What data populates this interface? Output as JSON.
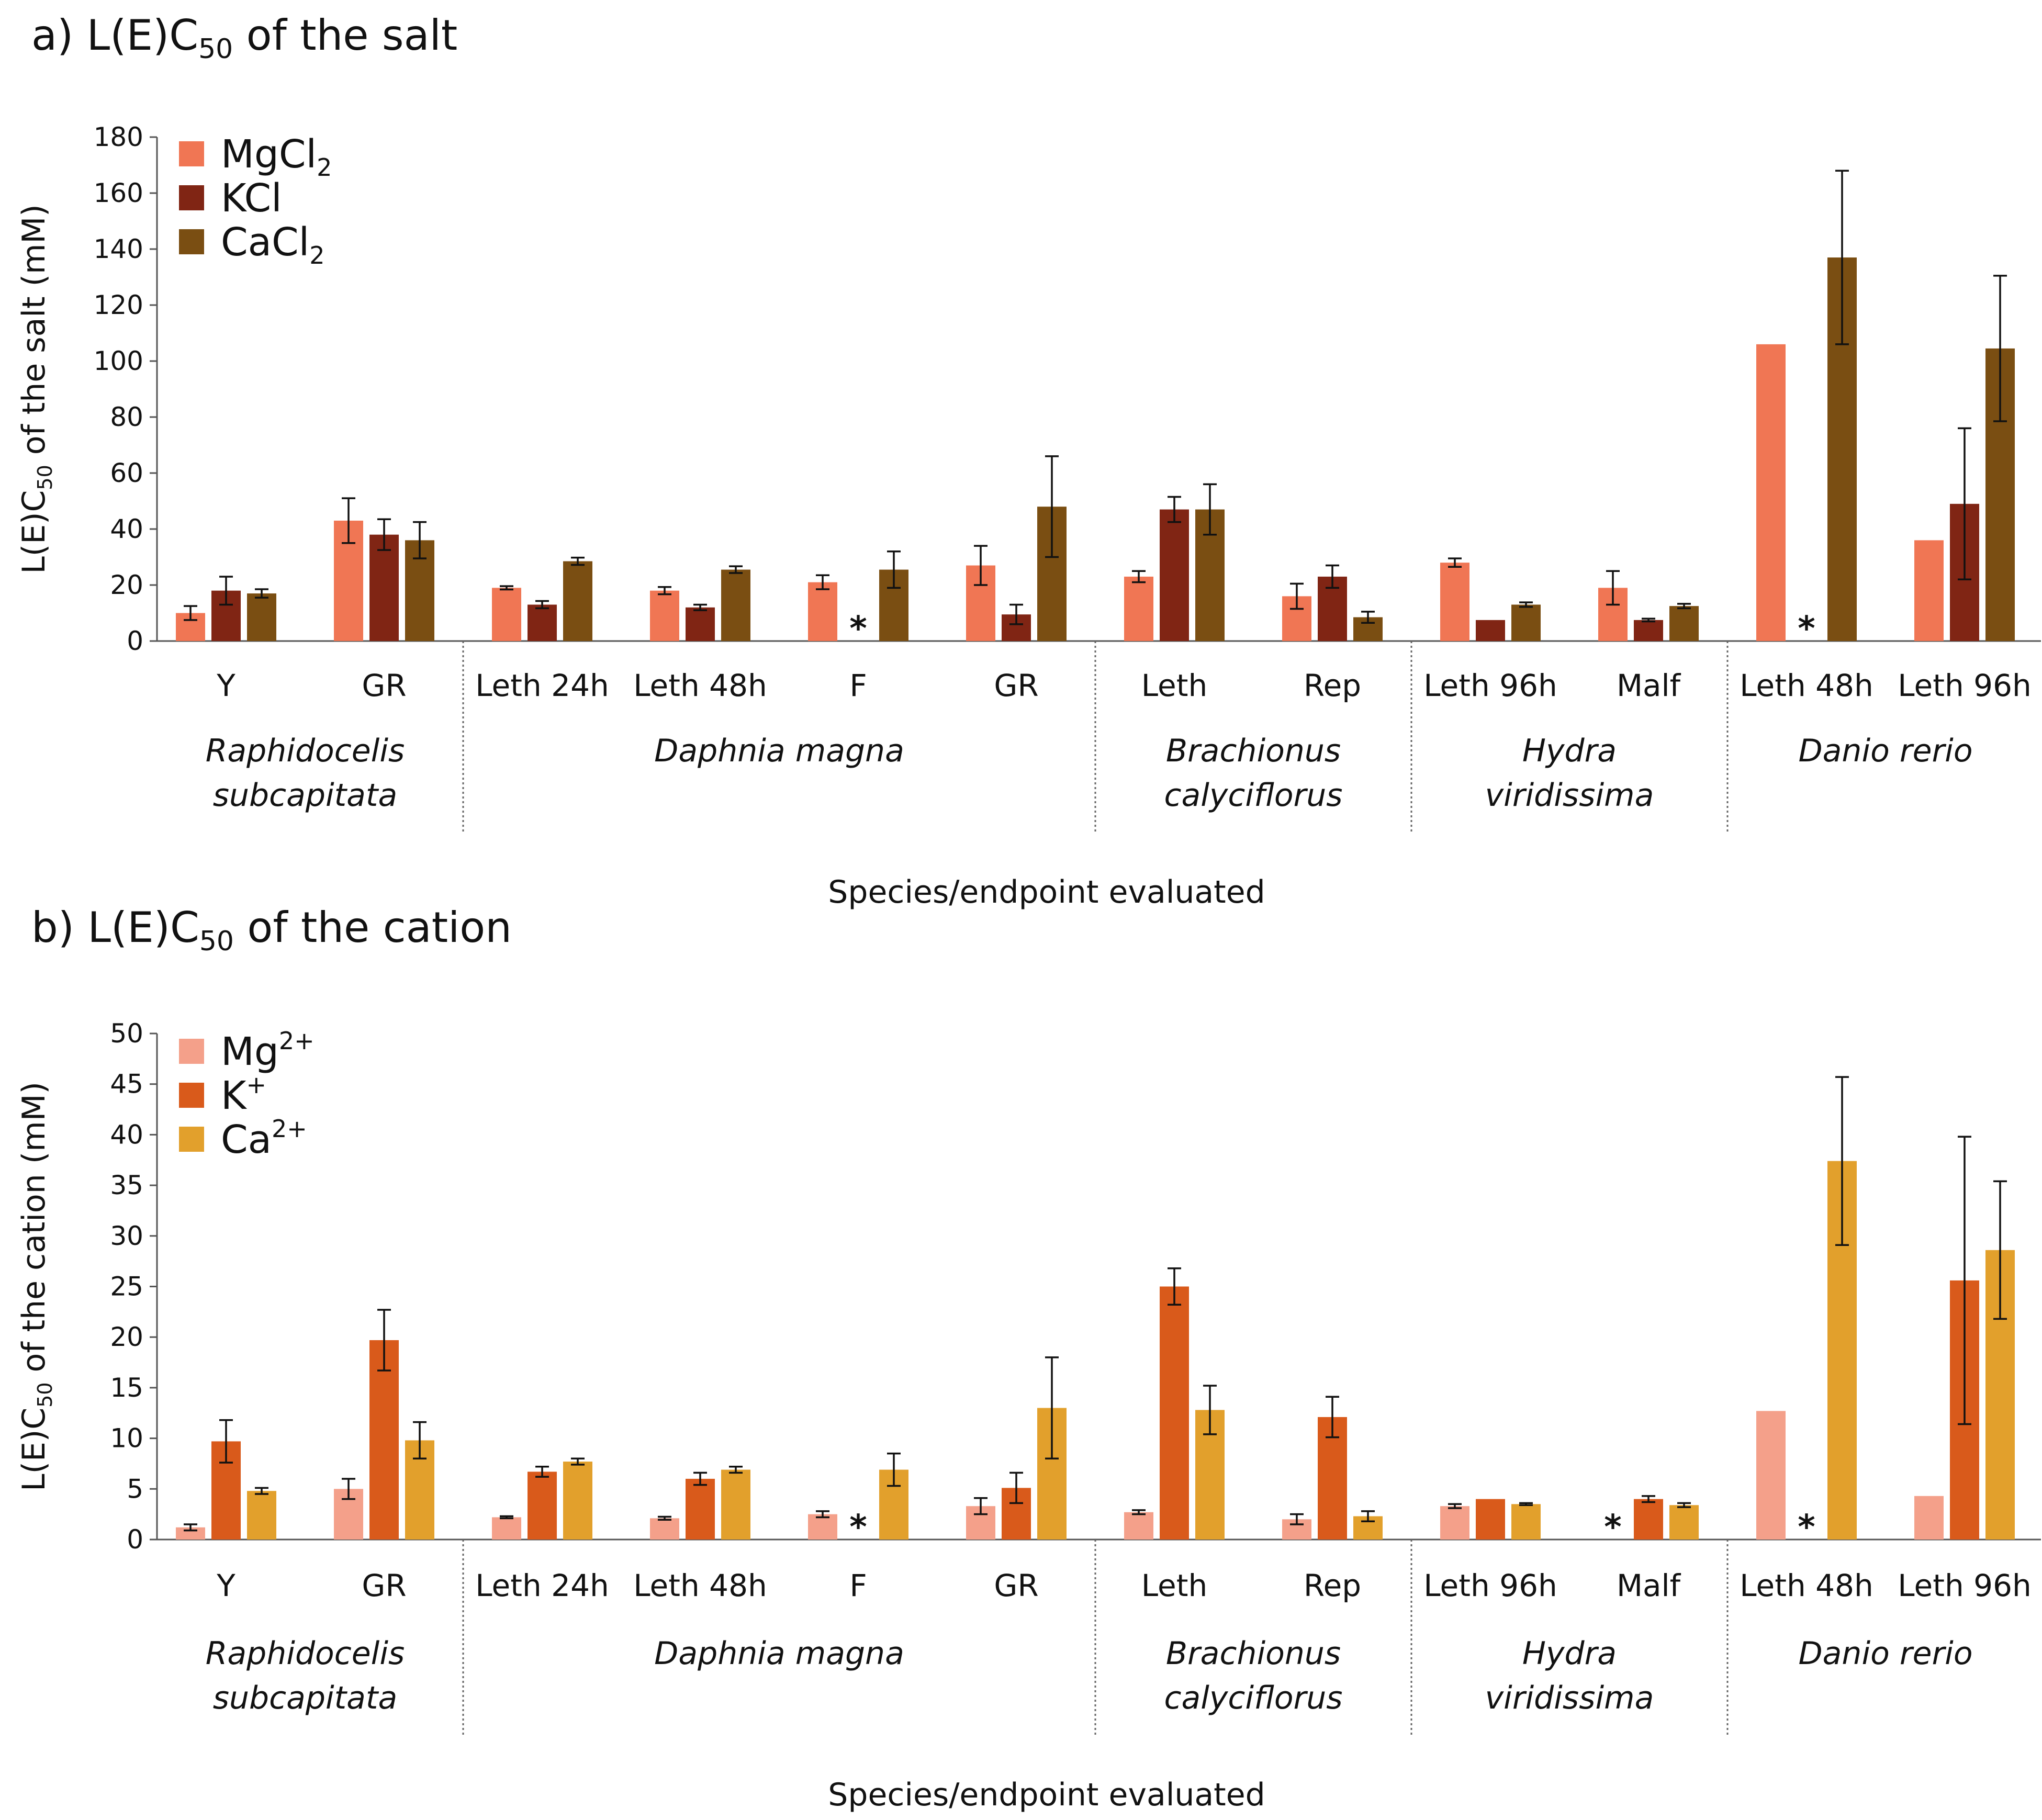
{
  "chart_data": [
    {
      "type": "bar",
      "panel": "a",
      "title": "a) L(E)C",
      "title_sub": "50",
      "title_tail": " of the salt",
      "ylabel": "L(E)C",
      "ylabel_sub": "50",
      "ylabel_tail": " of the salt (mM)",
      "xlabel": "Species/endpoint evaluated",
      "ylim": [
        0,
        180
      ],
      "yticks": [
        0,
        20,
        40,
        60,
        80,
        100,
        120,
        140,
        160,
        180
      ],
      "categories": [
        "Y",
        "GR",
        "Leth 24h",
        "Leth 48h",
        "F",
        "GR",
        "Leth",
        "Rep",
        "Leth 96h",
        "Malf",
        "Leth 48h",
        "Leth 96h"
      ],
      "groups": [
        {
          "lines": [
            "Raphidocelis",
            "subcapitata"
          ],
          "start": 0,
          "end": 1
        },
        {
          "lines": [
            "Daphnia magna"
          ],
          "start": 2,
          "end": 5
        },
        {
          "lines": [
            "Brachionus",
            "calyciflorus"
          ],
          "start": 6,
          "end": 7
        },
        {
          "lines": [
            "Hydra",
            "viridissima"
          ],
          "start": 8,
          "end": 9
        },
        {
          "lines": [
            "Danio rerio"
          ],
          "start": 10,
          "end": 11
        }
      ],
      "series": [
        {
          "name": "MgCl",
          "name_sub": "2",
          "color": "#F07654",
          "values": [
            10,
            43,
            19,
            18,
            21,
            27,
            23,
            16,
            28,
            19,
            106,
            36
          ],
          "errors": [
            2.5,
            8,
            0.6,
            1.3,
            2.5,
            7,
            2,
            4.5,
            1.5,
            6,
            null,
            null
          ]
        },
        {
          "name": "KCl",
          "name_sub": "",
          "color": "#802514",
          "values": [
            18,
            38,
            13,
            12,
            null,
            9.5,
            47,
            23,
            7.5,
            7.5,
            null,
            49
          ],
          "errors": [
            5,
            5.5,
            1.3,
            1,
            null,
            3.5,
            4.5,
            4,
            null,
            0.5,
            null,
            27
          ]
        },
        {
          "name": "CaCl",
          "name_sub": "2",
          "color": "#7A4E12",
          "values": [
            17,
            36,
            28.5,
            25.5,
            25.5,
            48,
            47,
            8.5,
            13,
            12.5,
            137,
            104.5
          ],
          "errors": [
            1.5,
            6.5,
            1.3,
            1.2,
            6.5,
            18,
            9,
            2,
            0.8,
            0.8,
            31,
            26
          ]
        }
      ],
      "missing_markers": [
        {
          "category_index": 4,
          "series_index": 1,
          "label": "*"
        },
        {
          "category_index": 10,
          "series_index": 1,
          "label": "*"
        }
      ]
    },
    {
      "type": "bar",
      "panel": "b",
      "title": "b) L(E)C",
      "title_sub": "50",
      "title_tail": " of the cation",
      "ylabel": "L(E)C",
      "ylabel_sub": "50",
      "ylabel_tail": " of the cation (mM)",
      "xlabel": "Species/endpoint evaluated",
      "ylim": [
        0,
        50
      ],
      "yticks": [
        0,
        5,
        10,
        15,
        20,
        25,
        30,
        35,
        40,
        45,
        50
      ],
      "categories": [
        "Y",
        "GR",
        "Leth 24h",
        "Leth 48h",
        "F",
        "GR",
        "Leth",
        "Rep",
        "Leth 96h",
        "Malf",
        "Leth 48h",
        "Leth 96h"
      ],
      "groups": [
        {
          "lines": [
            "Raphidocelis",
            "subcapitata"
          ],
          "start": 0,
          "end": 1
        },
        {
          "lines": [
            "Daphnia magna"
          ],
          "start": 2,
          "end": 5
        },
        {
          "lines": [
            "Brachionus",
            "calyciflorus"
          ],
          "start": 6,
          "end": 7
        },
        {
          "lines": [
            "Hydra",
            "viridissima"
          ],
          "start": 8,
          "end": 9
        },
        {
          "lines": [
            "Danio rerio"
          ],
          "start": 10,
          "end": 11
        }
      ],
      "series": [
        {
          "name": "Mg",
          "name_sup": "2+",
          "color": "#F4A08A",
          "values": [
            1.2,
            5,
            2.2,
            2.1,
            2.5,
            3.3,
            2.7,
            2,
            3.3,
            null,
            12.7,
            4.3
          ],
          "errors": [
            0.3,
            1,
            0.1,
            0.15,
            0.3,
            0.8,
            0.2,
            0.5,
            0.2,
            null,
            null,
            null
          ]
        },
        {
          "name": "K",
          "name_sup": "+",
          "color": "#D95A1B",
          "values": [
            9.7,
            19.7,
            6.7,
            6,
            null,
            5.1,
            25,
            12.1,
            4,
            4,
            null,
            25.6
          ],
          "errors": [
            2.1,
            3,
            0.5,
            0.6,
            null,
            1.5,
            1.8,
            2,
            null,
            0.3,
            null,
            14.2
          ]
        },
        {
          "name": "Ca",
          "name_sup": "2+",
          "color": "#E2A02C",
          "values": [
            4.8,
            9.8,
            7.7,
            6.9,
            6.9,
            13,
            12.8,
            2.3,
            3.5,
            3.4,
            37.4,
            28.6
          ],
          "errors": [
            0.3,
            1.8,
            0.3,
            0.3,
            1.6,
            5,
            2.4,
            0.5,
            0.1,
            0.2,
            8.3,
            6.8
          ]
        }
      ],
      "missing_markers": [
        {
          "category_index": 4,
          "series_index": 1,
          "label": "*"
        },
        {
          "category_index": 9,
          "series_index": 0,
          "label": "*"
        },
        {
          "category_index": 10,
          "series_index": 1,
          "label": "*"
        }
      ]
    }
  ]
}
